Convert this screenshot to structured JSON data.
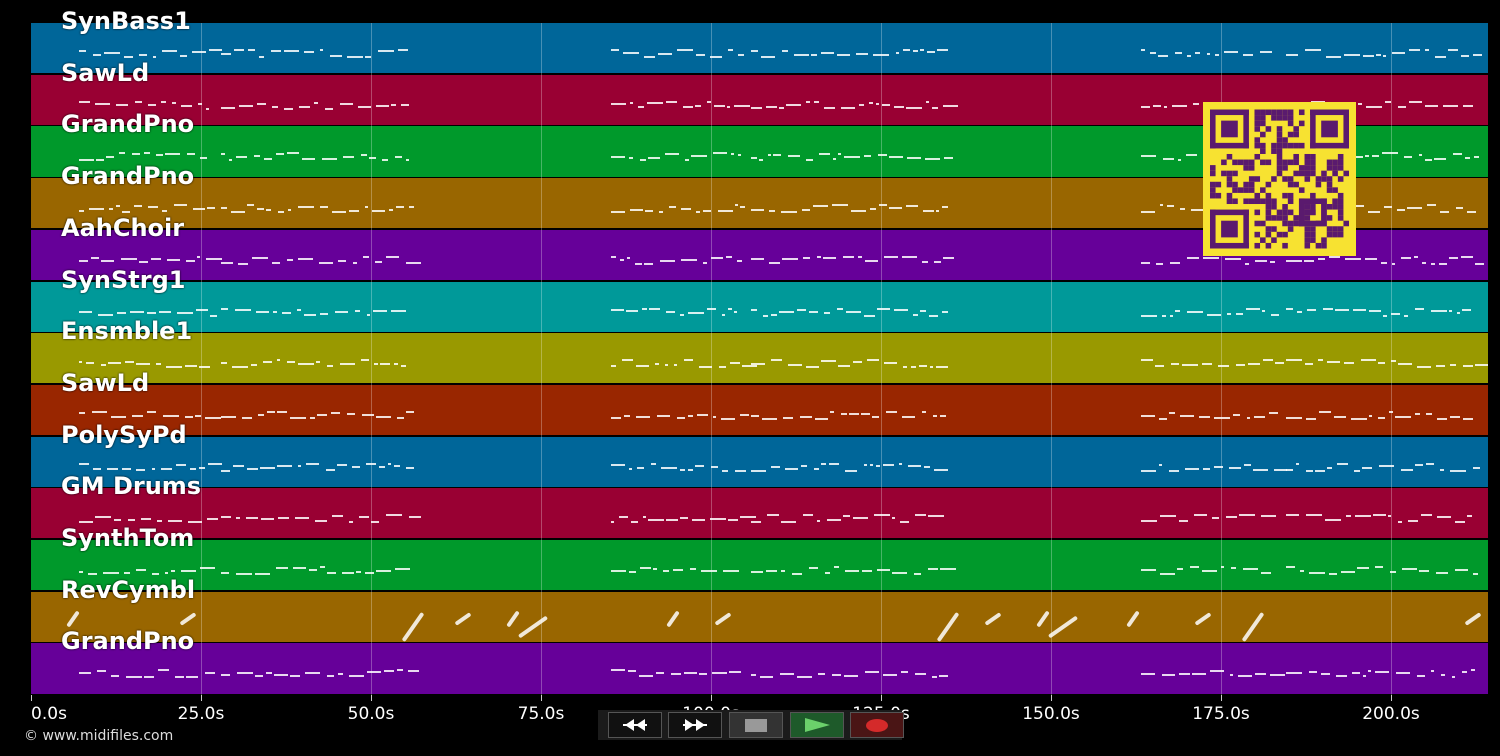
{
  "tracks": [
    {
      "name": "SynBass1",
      "color": "#006699"
    },
    {
      "name": "SawLd",
      "color": "#990033"
    },
    {
      "name": "GrandPno",
      "color": "#00992b"
    },
    {
      "name": "GrandPno",
      "color": "#996600"
    },
    {
      "name": "AahChoir",
      "color": "#660099"
    },
    {
      "name": "SynStrg1",
      "color": "#009999"
    },
    {
      "name": "Ensmble1",
      "color": "#999900"
    },
    {
      "name": "SawLd",
      "color": "#992600"
    },
    {
      "name": "PolySyPd",
      "color": "#006699"
    },
    {
      "name": "GM Drums",
      "color": "#990033"
    },
    {
      "name": "SynthTom",
      "color": "#00992b"
    },
    {
      "name": "RevCymbl",
      "color": "#996600"
    },
    {
      "name": "GrandPno",
      "color": "#660099"
    }
  ],
  "time_axis": {
    "labels": [
      "0.0s",
      "25.0s",
      "50.0s",
      "75.0s",
      "100.0s",
      "125.0s",
      "150.0s",
      "175.0s",
      "200.0s"
    ],
    "ticks": [
      0,
      25,
      50,
      75,
      100,
      125,
      150,
      175,
      200
    ],
    "max_seconds": 214
  },
  "footer": {
    "copyright": "© www.midifiles.com"
  },
  "transport": {
    "rewind_icon": "rewind-icon",
    "forward_icon": "fast-forward-icon",
    "stop_icon": "stop-icon",
    "play_icon": "play-icon",
    "record_icon": "record-icon"
  },
  "colors": {
    "background": "#000000",
    "qr_background": "#f7e231",
    "qr_modules": "#5a1a6e"
  }
}
